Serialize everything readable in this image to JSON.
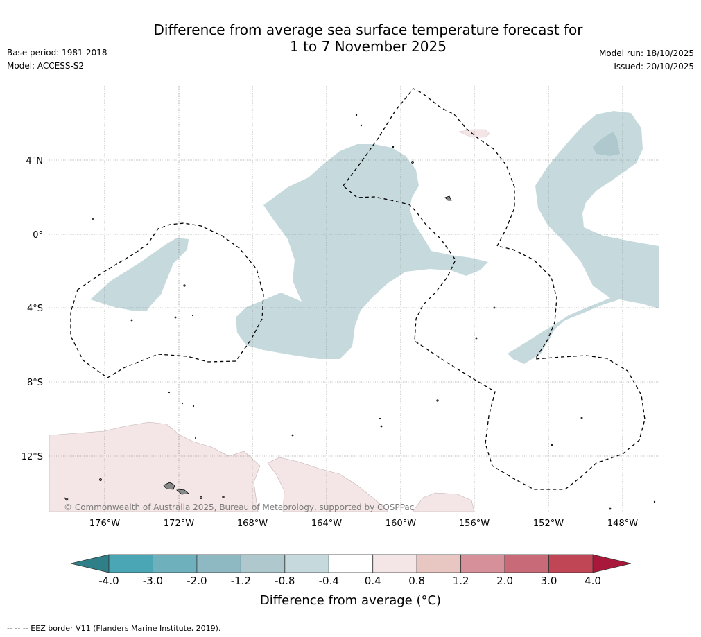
{
  "title": {
    "line1": "Difference from average sea surface temperature forecast for",
    "line2": "1 to 7 November 2025"
  },
  "meta_left": {
    "base_period": "Base period: 1981-2018",
    "model": "Model: ACCESS-S2"
  },
  "meta_right": {
    "model_run": "Model run: 18/10/2025",
    "issued": "Issued: 20/10/2025"
  },
  "map": {
    "lat_ticks": [
      "4°N",
      "0°",
      "4°S",
      "8°S",
      "12°S"
    ],
    "lon_ticks": [
      "176°W",
      "172°W",
      "168°W",
      "164°W",
      "160°W",
      "156°W",
      "152°W",
      "148°W"
    ],
    "credit": "© Commonwealth of Australia 2025, Bureau of Meteorology, supported by COSPPac"
  },
  "colorbar": {
    "ticks": [
      "-4.0",
      "-3.0",
      "-2.0",
      "-1.2",
      "-0.8",
      "-0.4",
      "0.4",
      "0.8",
      "1.2",
      "2.0",
      "3.0",
      "4.0"
    ],
    "colors": [
      "#4aa5b4",
      "#6fb0bd",
      "#8eb9c3",
      "#aec8cd",
      "#c6dadd",
      "#ffffff",
      "#f4e6e6",
      "#e8c6c2",
      "#d5909a",
      "#c96a78",
      "#c04656"
    ],
    "under_color": "#2f7f88",
    "over_color": "#a9183a",
    "label": "Difference from average (°C)"
  },
  "footer": "-- -- -- EEZ border V11 (Flanders Marine Institute, 2019)."
}
